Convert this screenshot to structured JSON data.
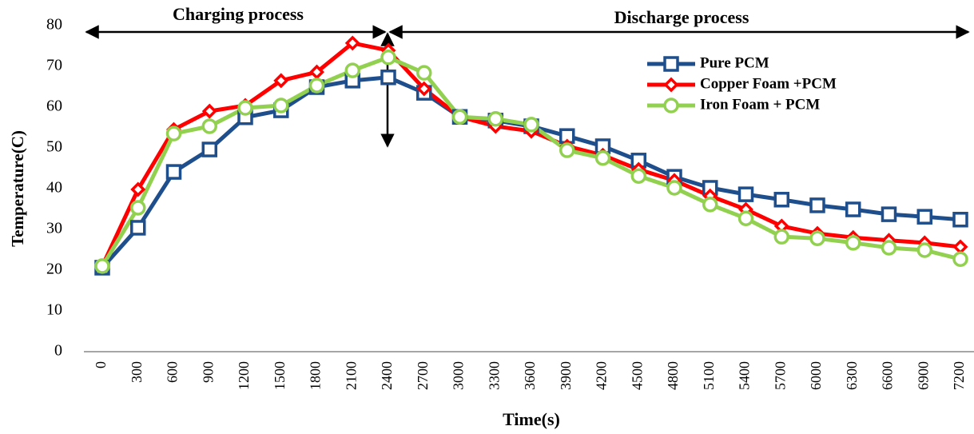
{
  "chart_data": {
    "type": "line",
    "x_label": "Time(s)",
    "y_label": "Temperature(C)",
    "annotations": [
      "Charging process",
      "Discharge process"
    ],
    "categories": [
      "0",
      "300",
      "600",
      "900",
      "1200",
      "1500",
      "1800",
      "2100",
      "2400",
      "2700",
      "3000",
      "3300",
      "3600",
      "3900",
      "4200",
      "4500",
      "4800",
      "5100",
      "5400",
      "5700",
      "6000",
      "6300",
      "6600",
      "6900",
      "7200"
    ],
    "series": [
      {
        "name": "Pure PCM",
        "color": "#1f4e8c",
        "marker": "square",
        "values": [
          20.6,
          30.4,
          44.1,
          49.6,
          57.5,
          59.2,
          64.9,
          66.5,
          67.3,
          63.5,
          57.6,
          56.7,
          55.3,
          52.9,
          50.4,
          46.9,
          42.9,
          40.2,
          38.6,
          37.3,
          35.9,
          34.9,
          33.7,
          33.1,
          32.4
        ]
      },
      {
        "name": "Copper Foam +PCM",
        "color": "#ff0000",
        "marker": "diamond",
        "values": [
          21,
          39.8,
          54.5,
          59.0,
          60.4,
          66.5,
          68.6,
          75.7,
          73.9,
          64.5,
          57.6,
          55.3,
          54.1,
          50.4,
          48.2,
          44.7,
          42.0,
          38.2,
          34.9,
          30.8,
          29.0,
          28.0,
          27.3,
          26.7,
          25.7
        ]
      },
      {
        "name": "Iron Foam + PCM",
        "color": "#92d050",
        "marker": "circle",
        "values": [
          21,
          35.3,
          53.5,
          55.3,
          59.8,
          60.4,
          65.3,
          69.0,
          72.2,
          68.4,
          57.6,
          57.1,
          55.7,
          49.4,
          47.5,
          43.1,
          40.2,
          36.1,
          32.7,
          28.2,
          27.8,
          26.7,
          25.5,
          24.9,
          22.7
        ]
      }
    ],
    "ylim": [
      0,
      80
    ],
    "yticks": [
      0,
      10,
      20,
      30,
      40,
      50,
      60,
      70,
      80
    ],
    "grid": false,
    "legend": "upper right"
  }
}
